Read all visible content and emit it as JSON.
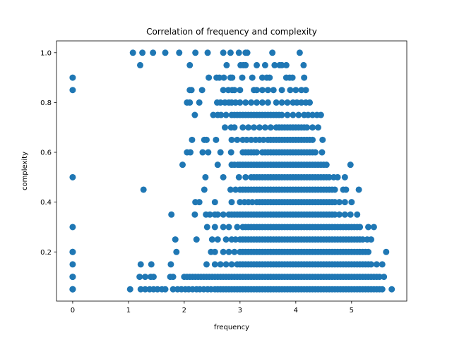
{
  "chart_data": {
    "type": "scatter",
    "title": "Correlation of frequency and complexity",
    "xlabel": "frequency",
    "ylabel": "complexity",
    "xlim": [
      -0.29,
      5.99
    ],
    "ylim": [
      0.0025,
      1.0475
    ],
    "x_ticks": [
      0,
      1,
      2,
      3,
      4,
      5
    ],
    "y_ticks": [
      0.2,
      0.4,
      0.6,
      0.8,
      1.0
    ],
    "x_tick_labels": [
      "0",
      "1",
      "2",
      "3",
      "4",
      "5"
    ],
    "y_tick_labels": [
      "0.2",
      "0.4",
      "0.6",
      "0.8",
      "1.0"
    ],
    "grid": false,
    "marker_color": "#1f77b4",
    "series": [
      {
        "name": "",
        "rows": [
          {
            "y": 1.0,
            "x": [
              1.08,
              1.25,
              1.44,
              1.66,
              1.91,
              2.2,
              2.42,
              2.7,
              2.83,
              2.98,
              3.1,
              3.13,
              3.58,
              4.07
            ]
          },
          {
            "y": 0.95,
            "x": [
              1.21,
              2.1,
              2.76,
              3.01,
              3.06,
              3.1,
              3.3,
              3.45,
              3.62,
              3.71,
              3.75,
              3.83,
              4.14
            ]
          },
          {
            "y": 0.9,
            "x": [
              0.0,
              2.44,
              2.58,
              2.63,
              2.71,
              2.83,
              2.86,
              3.04,
              3.22,
              3.4,
              3.48,
              3.53,
              3.83,
              3.89,
              3.94,
              4.15
            ]
          },
          {
            "y": 0.85,
            "x": [
              0.0,
              2.1,
              2.13,
              2.32,
              2.7,
              2.79,
              2.86,
              2.9,
              3.0,
              3.25,
              3.3,
              3.4,
              3.5,
              3.6,
              3.75,
              3.9,
              4.0,
              4.1,
              4.18
            ]
          },
          {
            "y": 0.8,
            "x": [
              2.05,
              2.1,
              2.27,
              2.59,
              2.65,
              2.73,
              2.8,
              2.85,
              2.92,
              3.0,
              3.1,
              3.2,
              3.3,
              3.4,
              3.5,
              3.65,
              3.75,
              3.85,
              3.95,
              4.02,
              4.1,
              4.18,
              4.25
            ]
          },
          {
            "y": 0.75,
            "x": [
              2.19,
              2.52,
              2.6,
              2.66,
              2.75,
              2.85,
              2.9,
              2.95,
              3.0,
              3.05,
              3.1,
              3.15,
              3.2,
              3.25,
              3.3,
              3.35,
              3.4,
              3.45,
              3.5,
              3.55,
              3.6,
              3.65,
              3.7,
              3.75,
              3.85,
              3.95,
              4.05,
              4.15,
              4.22,
              4.3,
              4.38,
              4.45
            ]
          },
          {
            "y": 0.7,
            "x": [
              2.73,
              2.84,
              2.9,
              3.05,
              3.15,
              3.25,
              3.35,
              3.45,
              3.55,
              3.65,
              3.7,
              3.75,
              3.8,
              3.85,
              3.9,
              3.95,
              4.0,
              4.05,
              4.1,
              4.15,
              4.2,
              4.3,
              4.4
            ]
          },
          {
            "y": 0.65,
            "x": [
              2.14,
              2.36,
              2.4,
              2.57,
              2.85,
              2.95,
              3.05,
              3.12,
              3.2,
              3.28,
              3.35,
              3.42,
              3.5,
              3.55,
              3.6,
              3.65,
              3.7,
              3.75,
              3.8,
              3.85,
              3.9,
              3.95,
              4.0,
              4.05,
              4.1,
              4.15,
              4.2,
              4.25,
              4.3,
              4.48
            ]
          },
          {
            "y": 0.6,
            "x": [
              2.05,
              2.11,
              2.33,
              2.43,
              2.65,
              2.84,
              3.05,
              3.1,
              3.15,
              3.2,
              3.25,
              3.3,
              3.4,
              3.45,
              3.5,
              3.55,
              3.6,
              3.65,
              3.7,
              3.75,
              3.8,
              3.85,
              3.9,
              3.95,
              4.0,
              4.05,
              4.1,
              4.15,
              4.2,
              4.25,
              4.3,
              4.35,
              4.47
            ]
          },
          {
            "y": 0.55,
            "x": [
              1.97,
              2.6,
              2.85,
              2.9,
              2.96,
              3.0,
              3.05,
              3.1,
              3.15,
              3.2,
              3.25,
              3.3,
              3.35,
              3.4,
              3.45,
              3.5,
              3.55,
              3.6,
              3.65,
              3.7,
              3.75,
              3.8,
              3.85,
              3.9,
              3.95,
              4.0,
              4.05,
              4.1,
              4.15,
              4.2,
              4.25,
              4.3,
              4.35,
              4.4,
              4.45,
              4.5,
              4.55,
              4.98
            ]
          },
          {
            "y": 0.5,
            "x": [
              0.0,
              2.38,
              2.7,
              2.98,
              3.1,
              3.2,
              3.25,
              3.3,
              3.35,
              3.4,
              3.45,
              3.5,
              3.55,
              3.6,
              3.65,
              3.7,
              3.75,
              3.8,
              3.85,
              3.9,
              3.95,
              4.0,
              4.05,
              4.1,
              4.15,
              4.2,
              4.25,
              4.3,
              4.35,
              4.4,
              4.45,
              4.5,
              4.55,
              4.6,
              4.68,
              4.75,
              4.88
            ]
          },
          {
            "y": 0.45,
            "x": [
              1.27,
              2.36,
              2.83,
              2.92,
              3.0,
              3.05,
              3.1,
              3.15,
              3.2,
              3.25,
              3.3,
              3.35,
              3.4,
              3.45,
              3.5,
              3.55,
              3.6,
              3.65,
              3.7,
              3.75,
              3.8,
              3.85,
              3.9,
              3.95,
              4.0,
              4.05,
              4.1,
              4.15,
              4.2,
              4.25,
              4.3,
              4.35,
              4.4,
              4.45,
              4.5,
              4.55,
              4.6,
              4.65,
              4.7,
              4.85,
              4.9,
              5.13
            ]
          },
          {
            "y": 0.4,
            "x": [
              2.2,
              2.27,
              2.55,
              2.85,
              3.0,
              3.08,
              3.15,
              3.22,
              3.3,
              3.35,
              3.4,
              3.45,
              3.5,
              3.55,
              3.6,
              3.65,
              3.7,
              3.75,
              3.8,
              3.85,
              3.9,
              3.95,
              4.0,
              4.05,
              4.1,
              4.15,
              4.2,
              4.25,
              4.3,
              4.35,
              4.4,
              4.45,
              4.5,
              4.55,
              4.6,
              4.65,
              4.7,
              4.78,
              4.88,
              5.0
            ]
          },
          {
            "y": 0.35,
            "x": [
              1.77,
              2.19,
              2.39,
              2.46,
              2.55,
              2.6,
              2.7,
              2.8,
              2.85,
              2.9,
              2.95,
              3.0,
              3.05,
              3.1,
              3.15,
              3.2,
              3.25,
              3.3,
              3.35,
              3.4,
              3.45,
              3.5,
              3.55,
              3.6,
              3.65,
              3.7,
              3.75,
              3.8,
              3.85,
              3.9,
              3.95,
              4.0,
              4.05,
              4.1,
              4.15,
              4.2,
              4.25,
              4.3,
              4.35,
              4.4,
              4.45,
              4.5,
              4.55,
              4.6,
              4.65,
              4.7,
              4.78,
              4.88,
              4.98,
              5.1
            ]
          },
          {
            "y": 0.3,
            "x": [
              0.0,
              2.41,
              2.55,
              2.7,
              2.8,
              2.95,
              3.05,
              3.1,
              3.15,
              3.2,
              3.25,
              3.3,
              3.35,
              3.4,
              3.45,
              3.5,
              3.55,
              3.6,
              3.65,
              3.7,
              3.75,
              3.8,
              3.85,
              3.9,
              3.95,
              4.0,
              4.05,
              4.1,
              4.15,
              4.2,
              4.25,
              4.3,
              4.35,
              4.4,
              4.45,
              4.5,
              4.55,
              4.6,
              4.65,
              4.7,
              4.75,
              4.8,
              4.85,
              4.9,
              4.95,
              5.0,
              5.05,
              5.1,
              5.15,
              5.3,
              5.4
            ]
          },
          {
            "y": 0.25,
            "x": [
              1.84,
              2.22,
              2.5,
              2.6,
              2.75,
              2.85,
              2.92,
              3.0,
              3.05,
              3.1,
              3.15,
              3.2,
              3.25,
              3.3,
              3.35,
              3.4,
              3.45,
              3.5,
              3.55,
              3.6,
              3.65,
              3.7,
              3.75,
              3.8,
              3.85,
              3.9,
              3.95,
              4.0,
              4.05,
              4.1,
              4.15,
              4.2,
              4.25,
              4.3,
              4.35,
              4.4,
              4.45,
              4.5,
              4.55,
              4.6,
              4.65,
              4.7,
              4.75,
              4.8,
              4.85,
              4.9,
              4.95,
              5.0,
              5.05,
              5.1,
              5.15,
              5.2,
              5.28,
              5.35
            ]
          },
          {
            "y": 0.2,
            "x": [
              0.0,
              0.0,
              1.86,
              2.48,
              2.55,
              2.7,
              2.8,
              2.9,
              3.0,
              3.05,
              3.1,
              3.15,
              3.2,
              3.25,
              3.3,
              3.35,
              3.4,
              3.45,
              3.5,
              3.55,
              3.6,
              3.65,
              3.7,
              3.75,
              3.8,
              3.85,
              3.9,
              3.95,
              4.0,
              4.05,
              4.1,
              4.15,
              4.2,
              4.25,
              4.3,
              4.35,
              4.4,
              4.45,
              4.5,
              4.55,
              4.6,
              4.65,
              4.7,
              4.75,
              4.8,
              4.85,
              4.9,
              4.95,
              5.0,
              5.05,
              5.1,
              5.15,
              5.2,
              5.25,
              5.3,
              5.62
            ]
          },
          {
            "y": 0.15,
            "x": [
              0.0,
              1.22,
              1.41,
              1.76,
              2.4,
              2.55,
              2.65,
              2.75,
              2.85,
              2.95,
              3.0,
              3.05,
              3.1,
              3.15,
              3.2,
              3.25,
              3.3,
              3.35,
              3.4,
              3.45,
              3.5,
              3.55,
              3.6,
              3.65,
              3.7,
              3.75,
              3.8,
              3.85,
              3.9,
              3.95,
              4.0,
              4.05,
              4.1,
              4.15,
              4.2,
              4.25,
              4.3,
              4.35,
              4.4,
              4.45,
              4.5,
              4.55,
              4.6,
              4.65,
              4.7,
              4.75,
              4.8,
              4.85,
              4.9,
              4.95,
              5.0,
              5.05,
              5.1,
              5.15,
              5.2,
              5.25,
              5.3,
              5.35,
              5.45,
              5.55
            ]
          },
          {
            "y": 0.1,
            "x": [
              0.0,
              0.0,
              1.2,
              1.3,
              1.4,
              1.45,
              1.75,
              1.8,
              2.0,
              2.05,
              2.1,
              2.15,
              2.2,
              2.25,
              2.3,
              2.35,
              2.4,
              2.45,
              2.5,
              2.55,
              2.6,
              2.65,
              2.7,
              2.75,
              2.8,
              2.85,
              2.9,
              2.95,
              3.0,
              3.05,
              3.1,
              3.15,
              3.2,
              3.25,
              3.3,
              3.35,
              3.4,
              3.45,
              3.5,
              3.55,
              3.6,
              3.65,
              3.7,
              3.75,
              3.8,
              3.85,
              3.9,
              3.95,
              4.0,
              4.05,
              4.1,
              4.15,
              4.2,
              4.25,
              4.3,
              4.35,
              4.4,
              4.45,
              4.5,
              4.55,
              4.6,
              4.65,
              4.7,
              4.75,
              4.8,
              4.85,
              4.9,
              4.95,
              5.0,
              5.05,
              5.1,
              5.15,
              5.2,
              5.25,
              5.3,
              5.35,
              5.4,
              5.45,
              5.5,
              5.58
            ]
          },
          {
            "y": 0.05,
            "x": [
              0.0,
              0.0,
              0.0,
              1.03,
              1.22,
              1.3,
              1.38,
              1.45,
              1.52,
              1.6,
              1.66,
              1.8,
              1.88,
              1.95,
              2.02,
              2.08,
              2.15,
              2.22,
              2.28,
              2.35,
              2.42,
              2.48,
              2.55,
              2.6,
              2.65,
              2.7,
              2.75,
              2.8,
              2.85,
              2.9,
              2.95,
              3.0,
              3.05,
              3.1,
              3.15,
              3.2,
              3.25,
              3.3,
              3.35,
              3.4,
              3.45,
              3.5,
              3.55,
              3.6,
              3.65,
              3.7,
              3.75,
              3.8,
              3.85,
              3.9,
              3.95,
              4.0,
              4.05,
              4.1,
              4.15,
              4.2,
              4.25,
              4.3,
              4.35,
              4.4,
              4.45,
              4.5,
              4.55,
              4.6,
              4.65,
              4.7,
              4.75,
              4.8,
              4.85,
              4.9,
              4.95,
              5.0,
              5.05,
              5.1,
              5.15,
              5.2,
              5.25,
              5.3,
              5.35,
              5.4,
              5.45,
              5.5,
              5.55,
              5.72
            ]
          }
        ]
      }
    ]
  }
}
